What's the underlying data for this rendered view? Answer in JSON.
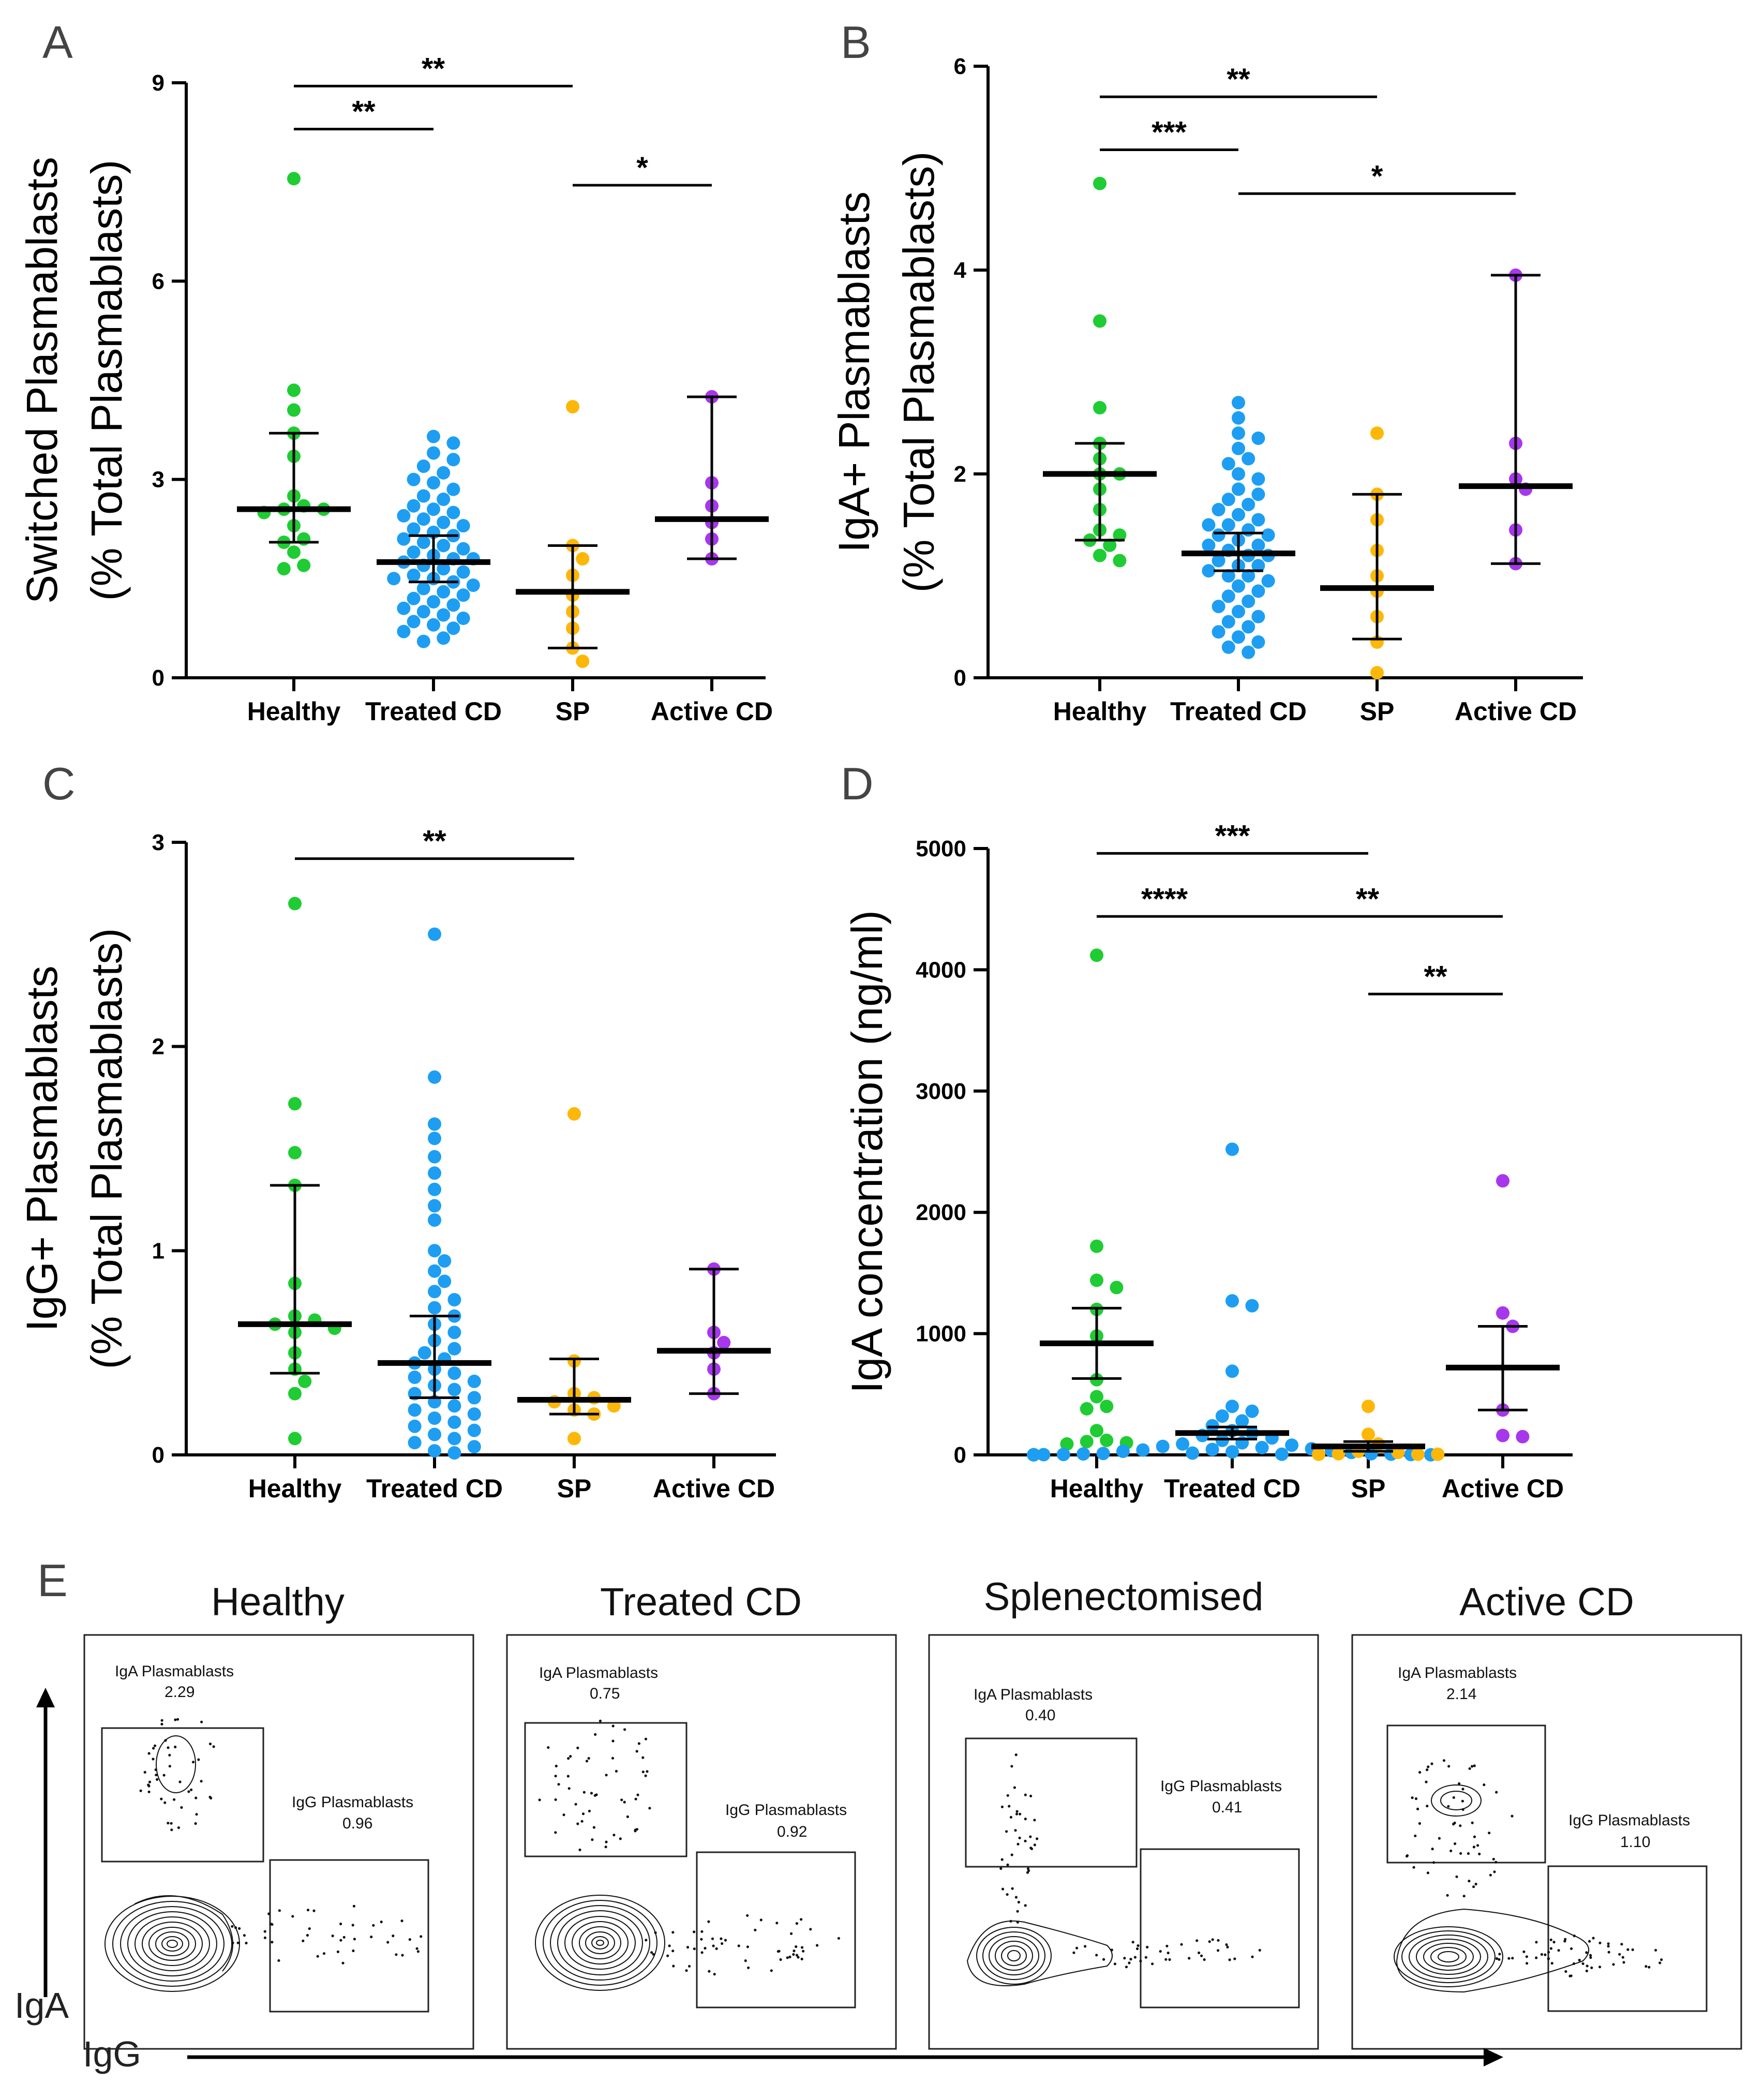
{
  "colors": {
    "healthy": "#1fcc33",
    "treated": "#1e9ef2",
    "sp": "#fdb709",
    "active": "#a737ec",
    "axis": "#000000"
  },
  "chart_data": [
    {
      "panel": "A",
      "type": "scatter",
      "ylabel": [
        "Switched Plasmablasts",
        "(% Total Plasmablasts)"
      ],
      "yticks": [
        "0",
        "3",
        "6",
        "9"
      ],
      "ylim": [
        0,
        9
      ],
      "categories": [
        "Healthy",
        "Treated CD",
        "SP",
        "Active CD"
      ],
      "groups": [
        {
          "name": "Healthy",
          "color": "healthy",
          "points": [
            7.55,
            4.35,
            4.05,
            3.7,
            3.35,
            2.75,
            2.6,
            2.55,
            2.55,
            2.5,
            2.3,
            2.1,
            2.05,
            1.9,
            1.7,
            1.65
          ],
          "center": 2.55,
          "err": [
            2.05,
            3.7
          ]
        },
        {
          "name": "Treated CD",
          "color": "treated",
          "points": [
            3.65,
            3.55,
            3.4,
            3.3,
            3.2,
            3.1,
            3.0,
            2.95,
            2.85,
            2.75,
            2.7,
            2.6,
            2.55,
            2.5,
            2.45,
            2.4,
            2.35,
            2.3,
            2.25,
            2.2,
            2.15,
            2.1,
            2.05,
            2.0,
            1.95,
            1.9,
            1.85,
            1.8,
            1.8,
            1.75,
            1.7,
            1.65,
            1.6,
            1.55,
            1.5,
            1.5,
            1.45,
            1.4,
            1.35,
            1.3,
            1.25,
            1.2,
            1.15,
            1.1,
            1.05,
            1.0,
            0.95,
            0.9,
            0.85,
            0.8,
            0.75,
            0.7,
            0.6,
            0.55
          ],
          "center": 1.75,
          "err": [
            1.45,
            2.15
          ]
        },
        {
          "name": "SP",
          "color": "sp",
          "points": [
            4.1,
            2.0,
            1.8,
            1.55,
            1.25,
            1.0,
            0.75,
            0.45,
            0.25
          ],
          "center": 1.3,
          "err": [
            0.45,
            2.0
          ]
        },
        {
          "name": "Active CD",
          "color": "active",
          "points": [
            4.25,
            2.95,
            2.6,
            2.35,
            2.1,
            1.8
          ],
          "center": 2.4,
          "err": [
            1.8,
            4.25
          ]
        }
      ],
      "significance": [
        {
          "from": 0,
          "to": 2,
          "label": "**",
          "y": 8.95
        },
        {
          "from": 0,
          "to": 1,
          "label": "**",
          "y": 8.3
        },
        {
          "from": 2,
          "to": 3,
          "label": "*",
          "y": 7.45
        }
      ]
    },
    {
      "panel": "B",
      "type": "scatter",
      "ylabel": [
        "IgA+ Plasmablasts",
        "(% Total Plasmablasts)"
      ],
      "yticks": [
        "0",
        "2",
        "4",
        "6"
      ],
      "ylim": [
        0,
        6
      ],
      "categories": [
        "Healthy",
        "Treated CD",
        "SP",
        "Active CD"
      ],
      "groups": [
        {
          "name": "Healthy",
          "color": "healthy",
          "points": [
            4.85,
            3.5,
            2.65,
            2.3,
            2.15,
            2.0,
            2.0,
            1.85,
            1.65,
            1.45,
            1.4,
            1.35,
            1.3,
            1.2,
            1.15
          ],
          "center": 2.0,
          "err": [
            1.35,
            2.3
          ]
        },
        {
          "name": "Treated CD",
          "color": "treated",
          "points": [
            2.7,
            2.55,
            2.4,
            2.35,
            2.25,
            2.15,
            2.1,
            2.0,
            1.95,
            1.85,
            1.8,
            1.75,
            1.7,
            1.65,
            1.6,
            1.55,
            1.5,
            1.5,
            1.45,
            1.4,
            1.4,
            1.35,
            1.3,
            1.3,
            1.25,
            1.2,
            1.2,
            1.15,
            1.1,
            1.1,
            1.05,
            1.0,
            1.0,
            0.95,
            0.9,
            0.85,
            0.8,
            0.75,
            0.7,
            0.65,
            0.6,
            0.55,
            0.5,
            0.45,
            0.4,
            0.35,
            0.3,
            0.25
          ],
          "center": 1.22,
          "err": [
            1.05,
            1.42
          ]
        },
        {
          "name": "SP",
          "color": "sp",
          "points": [
            2.4,
            1.8,
            1.55,
            1.25,
            1.0,
            0.85,
            0.6,
            0.35,
            0.05
          ],
          "center": 0.88,
          "err": [
            0.38,
            1.8
          ]
        },
        {
          "name": "Active CD",
          "color": "active",
          "points": [
            3.95,
            2.3,
            1.95,
            1.85,
            1.45,
            1.12
          ],
          "center": 1.88,
          "err": [
            1.12,
            3.95
          ]
        }
      ],
      "significance": [
        {
          "from": 0,
          "to": 2,
          "label": "**",
          "y": 5.7
        },
        {
          "from": 0,
          "to": 1,
          "label": "***",
          "y": 5.18
        },
        {
          "from": 1,
          "to": 3,
          "label": "*",
          "y": 4.75
        }
      ]
    },
    {
      "panel": "C",
      "type": "scatter",
      "ylabel": [
        "IgG+ Plasmablasts",
        "(% Total Plasmablasts)"
      ],
      "yticks": [
        "0",
        "1",
        "2",
        "3"
      ],
      "ylim": [
        0,
        3
      ],
      "categories": [
        "Healthy",
        "Treated CD",
        "SP",
        "Active CD"
      ],
      "groups": [
        {
          "name": "Healthy",
          "color": "healthy",
          "points": [
            2.7,
            1.72,
            1.48,
            1.32,
            0.84,
            0.68,
            0.66,
            0.64,
            0.62,
            0.6,
            0.5,
            0.42,
            0.36,
            0.3,
            0.08
          ],
          "center": 0.64,
          "err": [
            0.4,
            1.32
          ]
        },
        {
          "name": "Treated CD",
          "color": "treated",
          "points": [
            2.55,
            1.85,
            1.62,
            1.55,
            1.46,
            1.38,
            1.3,
            1.22,
            1.15,
            1.0,
            0.95,
            0.9,
            0.85,
            0.8,
            0.76,
            0.72,
            0.68,
            0.64,
            0.6,
            0.56,
            0.52,
            0.5,
            0.47,
            0.45,
            0.42,
            0.4,
            0.38,
            0.36,
            0.34,
            0.32,
            0.3,
            0.28,
            0.26,
            0.24,
            0.22,
            0.2,
            0.18,
            0.16,
            0.14,
            0.12,
            0.1,
            0.08,
            0.06,
            0.04,
            0.02,
            0.01
          ],
          "center": 0.45,
          "err": [
            0.28,
            0.68
          ]
        },
        {
          "name": "SP",
          "color": "sp",
          "points": [
            1.67,
            0.46,
            0.3,
            0.28,
            0.26,
            0.24,
            0.22,
            0.2,
            0.08
          ],
          "center": 0.27,
          "err": [
            0.2,
            0.47
          ]
        },
        {
          "name": "Active CD",
          "color": "active",
          "points": [
            0.91,
            0.6,
            0.55,
            0.5,
            0.42,
            0.3
          ],
          "center": 0.51,
          "err": [
            0.3,
            0.91
          ]
        }
      ],
      "significance": [
        {
          "from": 0,
          "to": 2,
          "label": "**",
          "y": 2.92
        }
      ]
    },
    {
      "panel": "D",
      "type": "scatter",
      "ylabel": [
        "IgA concentration (ng/ml)"
      ],
      "yticks": [
        "0",
        "1000",
        "2000",
        "3000",
        "4000",
        "5000"
      ],
      "ylim": [
        0,
        5000
      ],
      "categories": [
        "Healthy",
        "Treated CD",
        "SP",
        "Active CD"
      ],
      "groups": [
        {
          "name": "Healthy",
          "color": "healthy",
          "points": [
            4120,
            1720,
            1440,
            1380,
            1200,
            980,
            620,
            480,
            400,
            380,
            200,
            120,
            110,
            100,
            90
          ],
          "center": 920,
          "err": [
            630,
            1210
          ]
        },
        {
          "name": "Treated CD",
          "color": "treated",
          "points": [
            2520,
            1270,
            1230,
            690,
            400,
            360,
            320,
            280,
            240,
            200,
            180,
            160,
            140,
            120,
            100,
            90,
            80,
            70,
            60,
            50,
            45,
            40,
            35,
            30,
            25,
            20,
            15,
            12,
            10,
            8,
            6,
            5,
            4,
            3,
            2,
            1,
            1,
            1,
            1,
            1,
            1,
            1,
            1,
            1,
            1
          ],
          "center": 180,
          "err": [
            130,
            230
          ]
        },
        {
          "name": "SP",
          "color": "sp",
          "points": [
            400,
            170,
            90,
            30,
            20,
            10,
            5,
            5,
            5
          ],
          "center": 70,
          "err": [
            30,
            110
          ]
        },
        {
          "name": "Active CD",
          "color": "active",
          "points": [
            2260,
            1170,
            1060,
            370,
            160,
            150
          ],
          "center": 720,
          "err": [
            370,
            1060
          ]
        }
      ],
      "significance": [
        {
          "from": 0,
          "to": 2,
          "label": "***",
          "y": 4960
        },
        {
          "from": 0,
          "to": 1,
          "label": "****",
          "y": 4440
        },
        {
          "from": 1,
          "to": 3,
          "label": "**",
          "y": 4440
        },
        {
          "from": 2,
          "to": 3,
          "label": "**",
          "y": 3800
        }
      ]
    }
  ],
  "panel_letters": {
    "a": "A",
    "b": "B",
    "c": "C",
    "d": "D",
    "e": "E"
  },
  "flow": {
    "x_axis_label": "IgG",
    "y_axis_label": "IgA",
    "plots": [
      {
        "title": "Healthy",
        "iga_label": "IgA Plasmablasts",
        "iga_value": "2.29",
        "igg_label": "IgG Plasmablasts",
        "igg_value": "0.96"
      },
      {
        "title": "Treated CD",
        "iga_label": "IgA Plasmablasts",
        "iga_value": "0.75",
        "igg_label": "IgG Plasmablasts",
        "igg_value": "0.92"
      },
      {
        "title": "Splenectomised",
        "iga_label": "IgA Plasmablasts",
        "iga_value": "0.40",
        "igg_label": "IgG Plasmablasts",
        "igg_value": "0.41"
      },
      {
        "title": "Active CD",
        "iga_label": "IgA Plasmablasts",
        "iga_value": "2.14",
        "igg_label": "IgG Plasmablasts",
        "igg_value": "1.10"
      }
    ]
  }
}
